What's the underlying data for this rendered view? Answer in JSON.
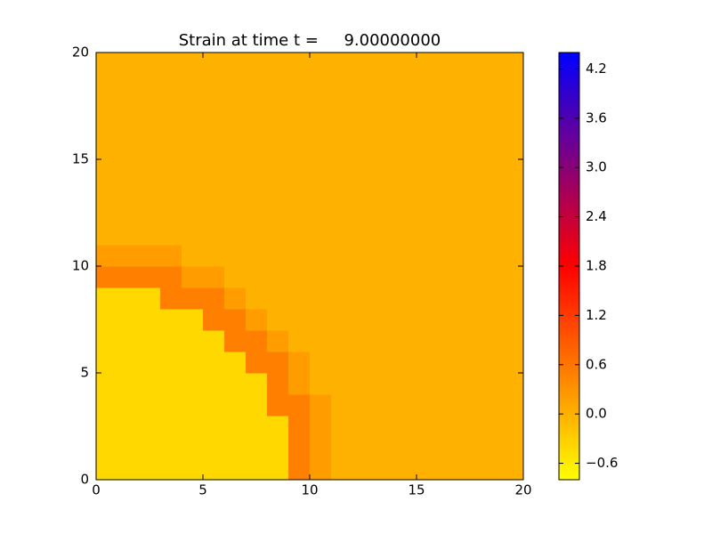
{
  "chart_data": {
    "type": "heatmap",
    "title": "Strain at time t =     9.00000000",
    "xlim": [
      0,
      20
    ],
    "ylim": [
      0,
      20
    ],
    "xticks": [
      0,
      5,
      10,
      15,
      20
    ],
    "yticks": [
      0,
      5,
      10,
      15,
      20
    ],
    "colormap": [
      "#ffff00",
      "#ff0000",
      "#0000ff"
    ],
    "clim": [
      -0.8,
      4.4
    ],
    "cticks": [
      {
        "value": -0.6,
        "label": "−0.6"
      },
      {
        "value": 0,
        "label": "0.0"
      },
      0.6,
      1.2,
      1.8,
      2.4,
      {
        "value": 3,
        "label": "3.0"
      },
      3.6,
      4.2
    ],
    "z": [
      [
        -0.4,
        -0.4,
        -0.4,
        -0.4,
        -0.4,
        -0.4,
        -0.4,
        -0.4,
        -0.4,
        0.5,
        0.2,
        0,
        0,
        0,
        0,
        0,
        0,
        0,
        0,
        0
      ],
      [
        -0.4,
        -0.4,
        -0.4,
        -0.4,
        -0.4,
        -0.4,
        -0.4,
        -0.4,
        -0.4,
        0.5,
        0.2,
        0,
        0,
        0,
        0,
        0,
        0,
        0,
        0,
        0
      ],
      [
        -0.4,
        -0.4,
        -0.4,
        -0.4,
        -0.4,
        -0.4,
        -0.4,
        -0.4,
        -0.4,
        0.5,
        0.2,
        0,
        0,
        0,
        0,
        0,
        0,
        0,
        0,
        0
      ],
      [
        -0.4,
        -0.4,
        -0.4,
        -0.4,
        -0.4,
        -0.4,
        -0.4,
        -0.4,
        0.5,
        0.5,
        0.2,
        0,
        0,
        0,
        0,
        0,
        0,
        0,
        0,
        0
      ],
      [
        -0.4,
        -0.4,
        -0.4,
        -0.4,
        -0.4,
        -0.4,
        -0.4,
        -0.4,
        0.5,
        0.2,
        0,
        0,
        0,
        0,
        0,
        0,
        0,
        0,
        0,
        0
      ],
      [
        -0.4,
        -0.4,
        -0.4,
        -0.4,
        -0.4,
        -0.4,
        -0.4,
        0.5,
        0.5,
        0.2,
        0,
        0,
        0,
        0,
        0,
        0,
        0,
        0,
        0,
        0
      ],
      [
        -0.4,
        -0.4,
        -0.4,
        -0.4,
        -0.4,
        -0.4,
        0.5,
        0.5,
        0.2,
        0,
        0,
        0,
        0,
        0,
        0,
        0,
        0,
        0,
        0,
        0
      ],
      [
        -0.4,
        -0.4,
        -0.4,
        -0.4,
        -0.4,
        0.5,
        0.5,
        0.2,
        0,
        0,
        0,
        0,
        0,
        0,
        0,
        0,
        0,
        0,
        0,
        0
      ],
      [
        -0.4,
        -0.4,
        -0.4,
        0.5,
        0.5,
        0.5,
        0.2,
        0,
        0,
        0,
        0,
        0,
        0,
        0,
        0,
        0,
        0,
        0,
        0,
        0
      ],
      [
        0.5,
        0.5,
        0.5,
        0.5,
        0.2,
        0.2,
        0,
        0,
        0,
        0,
        0,
        0,
        0,
        0,
        0,
        0,
        0,
        0,
        0,
        0
      ],
      [
        0.2,
        0.2,
        0.2,
        0.2,
        0,
        0,
        0,
        0,
        0,
        0,
        0,
        0,
        0,
        0,
        0,
        0,
        0,
        0,
        0,
        0
      ],
      [
        0,
        0,
        0,
        0,
        0,
        0,
        0,
        0,
        0,
        0,
        0,
        0,
        0,
        0,
        0,
        0,
        0,
        0,
        0,
        0
      ],
      [
        0,
        0,
        0,
        0,
        0,
        0,
        0,
        0,
        0,
        0,
        0,
        0,
        0,
        0,
        0,
        0,
        0,
        0,
        0,
        0
      ],
      [
        0,
        0,
        0,
        0,
        0,
        0,
        0,
        0,
        0,
        0,
        0,
        0,
        0,
        0,
        0,
        0,
        0,
        0,
        0,
        0
      ],
      [
        0,
        0,
        0,
        0,
        0,
        0,
        0,
        0,
        0,
        0,
        0,
        0,
        0,
        0,
        0,
        0,
        0,
        0,
        0,
        0
      ],
      [
        0,
        0,
        0,
        0,
        0,
        0,
        0,
        0,
        0,
        0,
        0,
        0,
        0,
        0,
        0,
        0,
        0,
        0,
        0,
        0
      ],
      [
        0,
        0,
        0,
        0,
        0,
        0,
        0,
        0,
        0,
        0,
        0,
        0,
        0,
        0,
        0,
        0,
        0,
        0,
        0,
        0
      ],
      [
        0,
        0,
        0,
        0,
        0,
        0,
        0,
        0,
        0,
        0,
        0,
        0,
        0,
        0,
        0,
        0,
        0,
        0,
        0,
        0
      ],
      [
        0,
        0,
        0,
        0,
        0,
        0,
        0,
        0,
        0,
        0,
        0,
        0,
        0,
        0,
        0,
        0,
        0,
        0,
        0,
        0
      ],
      [
        0,
        0,
        0,
        0,
        0,
        0,
        0,
        0,
        0,
        0,
        0,
        0,
        0,
        0,
        0,
        0,
        0,
        0,
        0,
        0
      ]
    ]
  }
}
